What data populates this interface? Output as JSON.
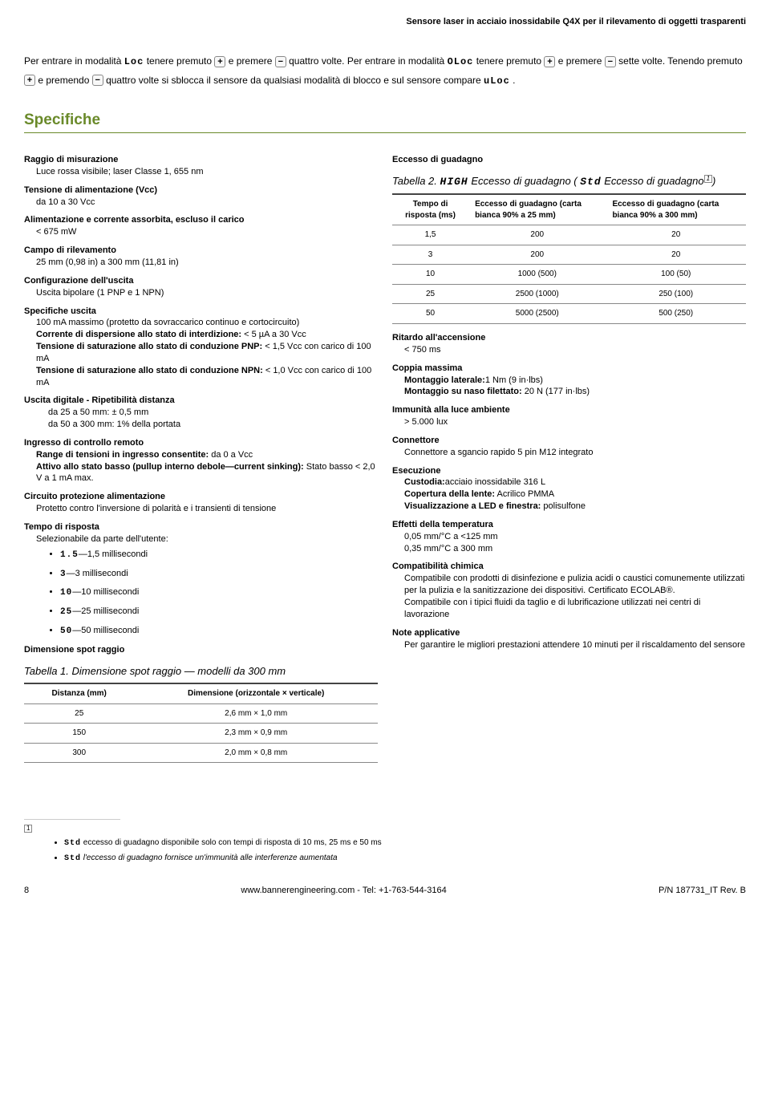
{
  "header": {
    "title": "Sensore laser in acciaio inossidabile Q4X per il rilevamento di oggetti trasparenti"
  },
  "intro": {
    "p1a": "Per entrare in modalità ",
    "lcd_loc": "Loc",
    "p1b": " tenere premuto ",
    "p1c": " e premere ",
    "p1d": " quattro volte. Per entrare in modalità ",
    "lcd_oloc": "OLoc",
    "p1e": " tenere premuto ",
    "p1f": " e premere ",
    "p1g": " sette volte. Tenendo premuto ",
    "p1h": " e premendo ",
    "p1i": " quattro volte si sblocca il sensore da qualsiasi modalità di blocco e sul sensore compare ",
    "lcd_uloc": "uLoc",
    "p1j": "."
  },
  "section_title": "Specifiche",
  "left": {
    "ray_h": "Raggio di misurazione",
    "ray_v": "Luce rossa visibile; laser Classe 1, 655 nm",
    "supply_h": "Tensione di alimentazione (Vcc)",
    "supply_v": "da 10 a 30 Vcc",
    "power_h": "Alimentazione e corrente assorbita, escluso il carico",
    "power_v": "< 675 mW",
    "range_h": "Campo di rilevamento",
    "range_v": "25 mm (0,98 in) a 300 mm (11,81 in)",
    "outcfg_h": "Configurazione dell'uscita",
    "outcfg_v": "Uscita bipolare (1 PNP e 1 NPN)",
    "outspec_h": "Specifiche uscita",
    "outspec_1": "100 mA massimo (protetto da sovraccarico continuo e cortocircuito)",
    "outspec_2a": "Corrente di dispersione allo stato di interdizione:",
    "outspec_2b": " < 5 µA a 30 Vcc",
    "outspec_3a": "Tensione di saturazione allo stato di conduzione PNP:",
    "outspec_3b": " < 1,5 Vcc con carico di 100 mA",
    "outspec_4a": "Tensione di saturazione allo stato di conduzione NPN:",
    "outspec_4b": " < 1,0 Vcc con carico di 100 mA",
    "digital_h": "Uscita digitale - Ripetibilità distanza",
    "digital_1": "da 25 a 50 mm: ± 0,5 mm",
    "digital_2": "da 50 a 300 mm: 1% della portata",
    "remote_h": "Ingresso di controllo remoto",
    "remote_1a": "Range di tensioni in ingresso consentite:",
    "remote_1b": " da 0 a Vcc",
    "remote_2a": "Attivo allo stato basso (pullup interno debole—current sinking):",
    "remote_2b": " Stato basso < 2,0 V a 1 mA max.",
    "protect_h": "Circuito protezione alimentazione",
    "protect_v": "Protetto contro l'inversione di polarità e i transienti di tensione",
    "response_h": "Tempo di risposta",
    "response_v": "Selezionabile da parte dell'utente:",
    "resp_opts": [
      {
        "lcd": "1.5",
        "label": "—1,5 millisecondi"
      },
      {
        "lcd": "3",
        "label": "—3 millisecondi"
      },
      {
        "lcd": "10",
        "label": "—10 millisecondi"
      },
      {
        "lcd": "25",
        "label": "—25 millisecondi"
      },
      {
        "lcd": "50",
        "label": "—50 millisecondi"
      }
    ],
    "spot_h": "Dimensione spot raggio",
    "table1_caption": "Tabella 1. Dimensione spot raggio — modelli da 300 mm",
    "table1": {
      "col1": "Distanza (mm)",
      "col2": "Dimensione (orizzontale × verticale)",
      "rows": [
        [
          "25",
          "2,6 mm × 1,0 mm"
        ],
        [
          "150",
          "2,3 mm × 0,9 mm"
        ],
        [
          "300",
          "2,0 mm × 0,8 mm"
        ]
      ]
    }
  },
  "right": {
    "gain_h": "Eccesso di guadagno",
    "table2_caption_a": "Tabella 2. ",
    "table2_lcd_high": "HIGH",
    "table2_caption_b": " Eccesso di guadagno ( ",
    "table2_lcd_std": "Std",
    "table2_caption_c": " Eccesso di guadagno",
    "table2_caption_d": ")",
    "table2": {
      "col1": "Tempo di risposta (ms)",
      "col2": "Eccesso di guadagno (carta bianca 90% a 25 mm)",
      "col3": "Eccesso di guadagno (carta bianca 90% a 300 mm)",
      "rows": [
        [
          "1,5",
          "200",
          "20"
        ],
        [
          "3",
          "200",
          "20"
        ],
        [
          "10",
          "1000 (500)",
          "100 (50)"
        ],
        [
          "25",
          "2500 (1000)",
          "250 (100)"
        ],
        [
          "50",
          "5000 (2500)",
          "500 (250)"
        ]
      ]
    },
    "delay_h": "Ritardo all'accensione",
    "delay_v": "< 750 ms",
    "torque_h": "Coppia massima",
    "torque_1a": "Montaggio laterale:",
    "torque_1b": "1 Nm (9 in·lbs)",
    "torque_2a": "Montaggio su naso filettato:",
    "torque_2b": " 20 N (177 in·lbs)",
    "ambient_h": "Immunità alla luce ambiente",
    "ambient_v": "> 5.000 lux",
    "conn_h": "Connettore",
    "conn_v": "Connettore a sgancio rapido 5 pin M12 integrato",
    "exec_h": "Esecuzione",
    "exec_1a": "Custodia:",
    "exec_1b": "acciaio inossidabile 316 L",
    "exec_2a": "Copertura della lente:",
    "exec_2b": " Acrilico PMMA",
    "exec_3a": "Visualizzazione a LED e finestra:",
    "exec_3b": " polisulfone",
    "temp_h": "Effetti della temperatura",
    "temp_1": "0,05 mm/°C a <125 mm",
    "temp_2": "0,35 mm/°C a 300 mm",
    "chem_h": "Compatibilità chimica",
    "chem_1": "Compatibile con prodotti di disinfezione e pulizia acidi o caustici comunemente utilizzati per la pulizia e la sanitizzazione dei dispositivi. Certificato ECOLAB®.",
    "chem_2": "Compatibile con i tipici fluidi da taglio e di lubrificazione utilizzati nei centri di lavorazione",
    "notes_h": "Note applicative",
    "notes_v": "Per garantire le migliori prestazioni attendere 10 minuti per il riscaldamento del sensore"
  },
  "footnotes": {
    "f1_lcd": "Std",
    "f1": " eccesso di guadagno disponibile solo con tempi di risposta di 10 ms, 25 ms e 50 ms",
    "f2_lcd": "Std",
    "f2": " l'eccesso di guadagno fornisce un'immunità alle interferenze aumentata"
  },
  "footer": {
    "page": "8",
    "center": "www.bannerengineering.com - Tel: +1-763-544-3164",
    "right": "P/N 187731_IT Rev. B"
  }
}
